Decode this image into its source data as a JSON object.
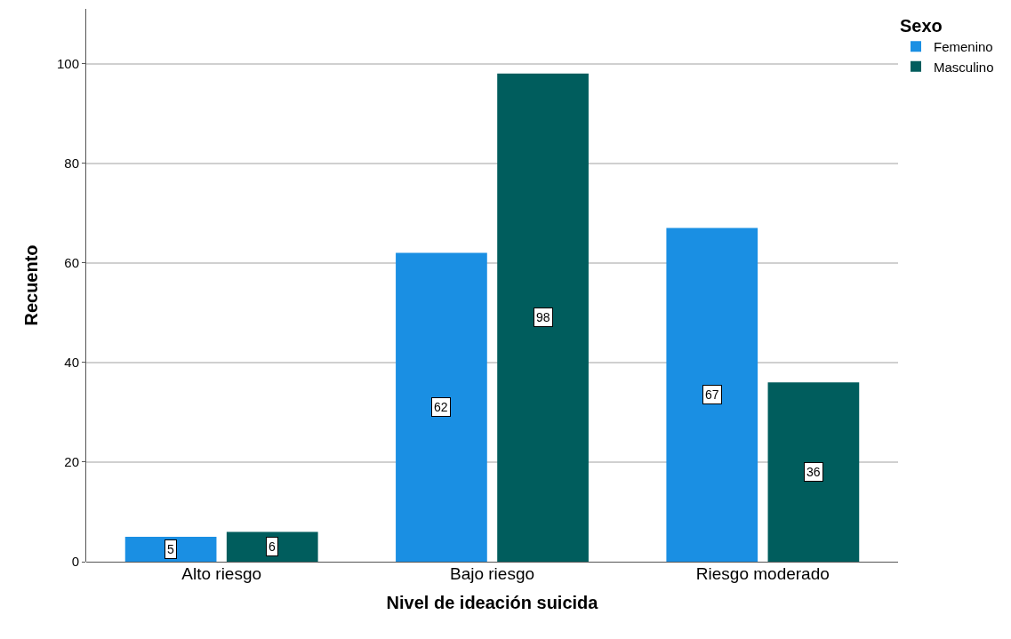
{
  "chart_data": {
    "type": "bar",
    "xlabel": "Nivel de ideación suicida",
    "ylabel": "Recuento",
    "legend_title": "Sexo",
    "categories": [
      "Alto riesgo",
      "Bajo riesgo",
      "Riesgo moderado"
    ],
    "series": [
      {
        "name": "Femenino",
        "color": "#1a8fe3",
        "values": [
          5,
          62,
          67
        ]
      },
      {
        "name": "Masculino",
        "color": "#005d5d",
        "values": [
          6,
          98,
          36
        ]
      }
    ],
    "ylim": [
      0,
      111
    ],
    "yticks": [
      0,
      20,
      40,
      60,
      80,
      100
    ],
    "grid": "y",
    "legend": "top right",
    "data_labels": true
  }
}
